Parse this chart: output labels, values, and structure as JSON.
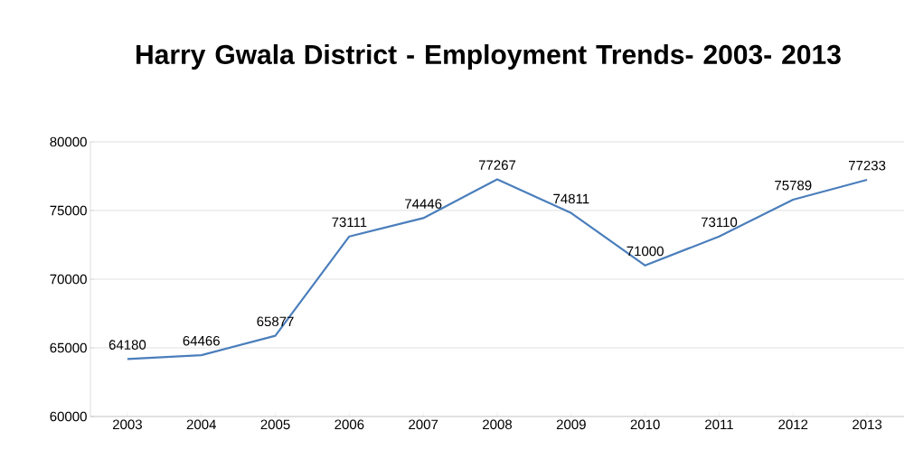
{
  "chart_data": {
    "type": "line",
    "title": "Harry Gwala District - Employment Trends- 2003- 2013",
    "categories": [
      "2003",
      "2004",
      "2005",
      "2006",
      "2007",
      "2008",
      "2009",
      "2010",
      "2011",
      "2012",
      "2013"
    ],
    "values": [
      64180,
      64466,
      65877,
      73111,
      74446,
      77267,
      74811,
      71000,
      73110,
      75789,
      77233
    ],
    "color": "#4a7ebb",
    "ylim": [
      60000,
      80000
    ],
    "yticks": [
      60000,
      65000,
      70000,
      75000,
      80000
    ],
    "grid": "y",
    "marker": "none",
    "line_style": "solid",
    "data_labels": true
  }
}
